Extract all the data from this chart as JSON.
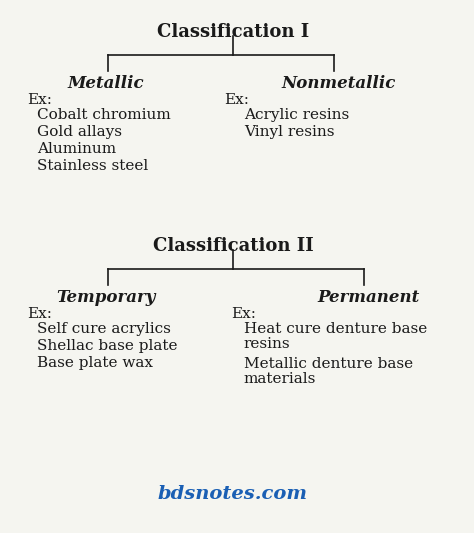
{
  "bg_color": "#f5f5f0",
  "text_color": "#1a1a1a",
  "blue_color": "#1a5fb4",
  "classification1": "Classification I",
  "class1_left_label": "Metallic",
  "class1_right_label": "Nonmetallic",
  "class1_left_ex": "Ex:",
  "class1_left_items": [
    "Cobalt chromium",
    "Gold allays",
    "Aluminum",
    "Stainless steel"
  ],
  "class1_right_ex": "Ex:",
  "class1_right_items": [
    "Acrylic resins",
    "Vinyl resins"
  ],
  "classification2": "Classification II",
  "class2_left_label": "Temporary",
  "class2_right_label": "Permanent",
  "class2_left_ex": "Ex:",
  "class2_left_items": [
    "Self cure acrylics",
    "Shellac base plate",
    "Base plate wax"
  ],
  "class2_right_ex": "Ex:",
  "class2_right_items": [
    "Heat cure denture base\nresins",
    "Metallic denture base\nmaterials"
  ],
  "footer": "bdsnotes.com"
}
